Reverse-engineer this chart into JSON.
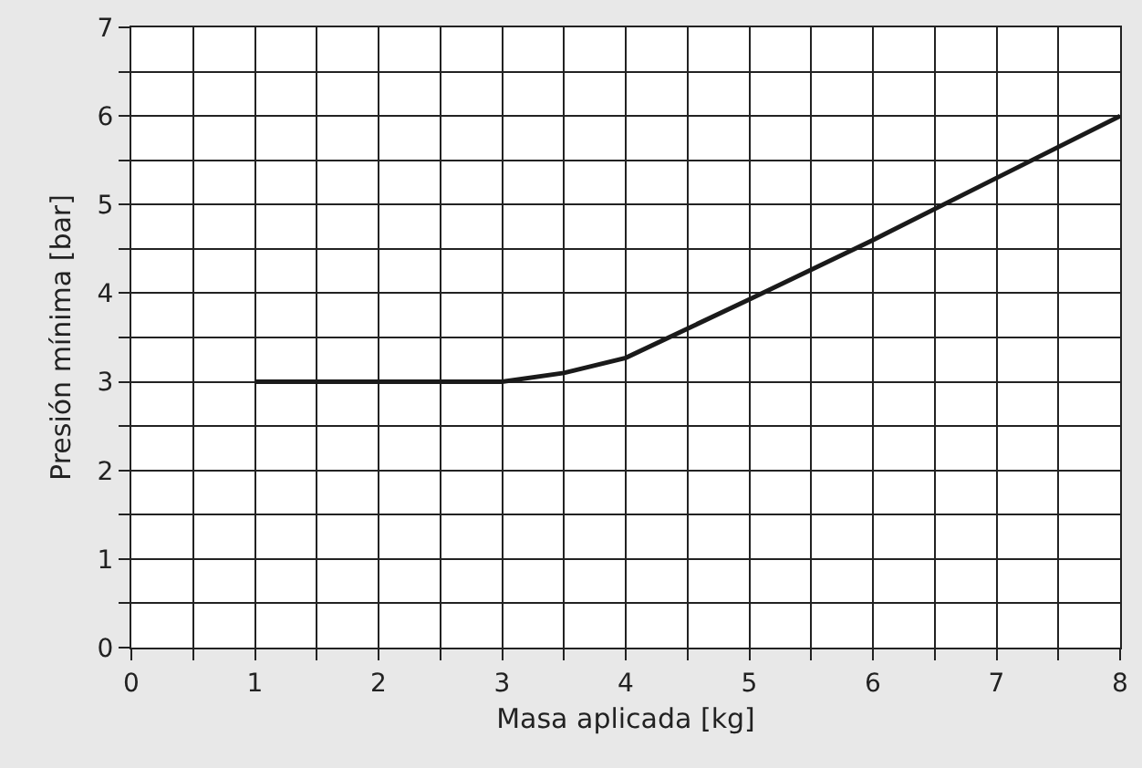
{
  "chart_data": {
    "type": "line",
    "xlabel": "Masa aplicada [kg]",
    "ylabel": "Presión mínima [bar]",
    "series": [
      {
        "color": "#1a1a1a",
        "x": [
          1,
          2,
          3,
          3.5,
          4,
          5,
          6,
          7,
          8
        ],
        "values": [
          3,
          3,
          3,
          3.1,
          3.27,
          3.93,
          4.6,
          5.3,
          6
        ]
      }
    ],
    "xlim": [
      0,
      8
    ],
    "ylim": [
      0,
      7
    ],
    "xticks": [
      0,
      {
        "value": 0.5,
        "label": null
      },
      1,
      {
        "value": 1.5,
        "label": null
      },
      2,
      {
        "value": 2.5,
        "label": null
      },
      3,
      {
        "value": 3.5,
        "label": null
      },
      4,
      {
        "value": 4.5,
        "label": null
      },
      5,
      {
        "value": 5.5,
        "label": null
      },
      6,
      {
        "value": 6.5,
        "label": null
      },
      7,
      {
        "value": 7.5,
        "label": null
      },
      8
    ],
    "yticks": [
      0,
      {
        "value": 0.5,
        "label": null
      },
      1,
      {
        "value": 1.5,
        "label": null
      },
      2,
      {
        "value": 2.5,
        "label": null
      },
      3,
      {
        "value": 3.5,
        "label": null
      },
      4,
      {
        "value": 4.5,
        "label": null
      },
      5,
      {
        "value": 5.5,
        "label": null
      },
      6,
      {
        "value": 6.5,
        "label": null
      },
      7
    ],
    "grid": true,
    "marker": "none",
    "line_style": "solid"
  }
}
